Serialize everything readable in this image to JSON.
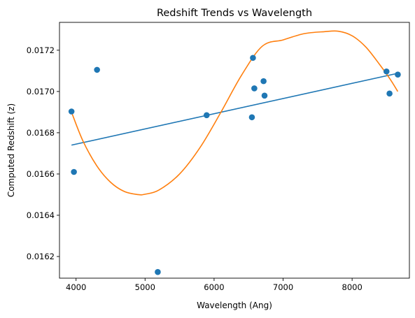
{
  "chart_data": {
    "type": "scatter",
    "title": "Redshift Trends vs Wavelength",
    "xlabel": "Wavelength (Ang)",
    "ylabel": "Computed Redshift (z)",
    "xlim": [
      3760,
      8830
    ],
    "ylim": [
      0.016095,
      0.017335
    ],
    "x_ticks": [
      4000,
      5000,
      6000,
      7000,
      8000
    ],
    "x_tick_labels": [
      "4000",
      "5000",
      "6000",
      "7000",
      "8000"
    ],
    "y_ticks": [
      0.0162,
      0.0164,
      0.0166,
      0.0168,
      0.017,
      0.0172
    ],
    "y_tick_labels": [
      "0.0162",
      "0.0164",
      "0.0166",
      "0.0168",
      "0.0170",
      "0.0172"
    ],
    "grid": false,
    "legend": "none",
    "points": {
      "color": "#1f77b4",
      "x": [
        3934,
        3969,
        4304,
        5184,
        5892,
        6548,
        6563,
        6583,
        6717,
        6731,
        8498,
        8542,
        8662
      ],
      "y": [
        0.016903,
        0.01661,
        0.017105,
        0.016125,
        0.016885,
        0.016875,
        0.017163,
        0.017015,
        0.01705,
        0.01698,
        0.017097,
        0.01699,
        0.017082
      ]
    },
    "linear_fit": {
      "color": "#1f77b4",
      "x": [
        3934,
        8662
      ],
      "y": [
        0.01674,
        0.017088
      ]
    },
    "cubic_fit": {
      "color": "#ff7f0e",
      "x": [
        3934,
        4100,
        4300,
        4500,
        4700,
        4900,
        5000,
        5200,
        5500,
        5800,
        6100,
        6400,
        6700,
        7000,
        7300,
        7600,
        7800,
        8000,
        8200,
        8400,
        8550,
        8662
      ],
      "y": [
        0.0169,
        0.01676,
        0.01664,
        0.01656,
        0.016515,
        0.0165,
        0.016502,
        0.016522,
        0.0166,
        0.01673,
        0.0169,
        0.01708,
        0.01722,
        0.01725,
        0.01728,
        0.01729,
        0.017292,
        0.01727,
        0.017215,
        0.01713,
        0.01706,
        0.017
      ]
    }
  }
}
